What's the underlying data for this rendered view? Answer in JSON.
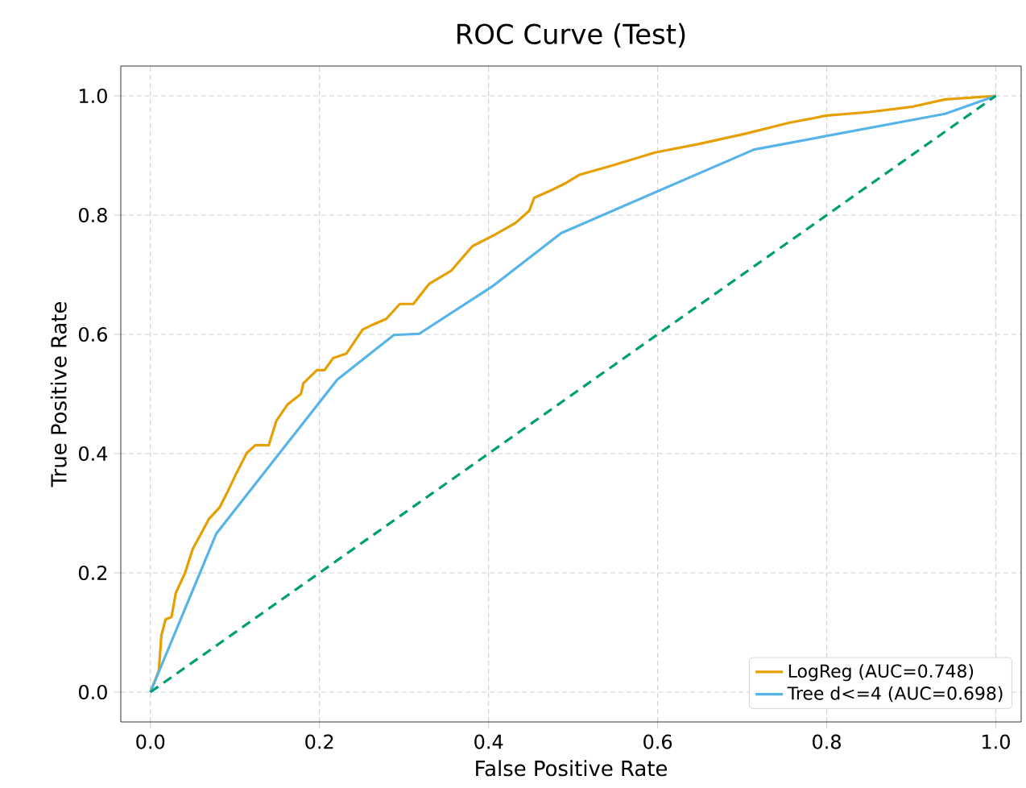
{
  "chart_data": {
    "type": "line",
    "title": "ROC Curve (Test)",
    "xlabel": "False Positive Rate",
    "ylabel": "True Positive Rate",
    "xlim": [
      -0.035,
      1.03
    ],
    "ylim": [
      -0.05,
      1.05
    ],
    "xticks": [
      {
        "value": 0,
        "label": "0.0"
      },
      {
        "value": 0.2,
        "label": "0.2"
      },
      {
        "value": 0.4,
        "label": "0.4"
      },
      {
        "value": 0.6,
        "label": "0.6"
      },
      {
        "value": 0.8,
        "label": "0.8"
      },
      {
        "value": 1,
        "label": "1.0"
      }
    ],
    "yticks": [
      {
        "value": 0,
        "label": "0.0"
      },
      {
        "value": 0.2,
        "label": "0.2"
      },
      {
        "value": 0.4,
        "label": "0.4"
      },
      {
        "value": 0.6,
        "label": "0.6"
      },
      {
        "value": 0.8,
        "label": "0.8"
      },
      {
        "value": 1,
        "label": "1.0"
      }
    ],
    "grid": true,
    "legend": "bottom right",
    "line_style": "solid",
    "marker": "none",
    "series": [
      {
        "name": "LogReg (AUC=0.748)",
        "color": "#e69f00",
        "x": [
          0,
          0.01,
          0.013,
          0.018,
          0.025,
          0.03,
          0.041,
          0.05,
          0.06,
          0.069,
          0.082,
          0.092,
          0.101,
          0.114,
          0.124,
          0.14,
          0.149,
          0.162,
          0.178,
          0.181,
          0.197,
          0.206,
          0.216,
          0.232,
          0.251,
          0.264,
          0.279,
          0.295,
          0.311,
          0.33,
          0.356,
          0.381,
          0.406,
          0.432,
          0.448,
          0.454,
          0.476,
          0.489,
          0.508,
          0.546,
          0.597,
          0.648,
          0.705,
          0.756,
          0.8,
          0.851,
          0.902,
          0.94,
          1
        ],
        "values": [
          0,
          0.036,
          0.095,
          0.122,
          0.126,
          0.166,
          0.2,
          0.24,
          0.266,
          0.29,
          0.31,
          0.338,
          0.365,
          0.401,
          0.414,
          0.414,
          0.455,
          0.482,
          0.5,
          0.518,
          0.54,
          0.54,
          0.56,
          0.568,
          0.608,
          0.617,
          0.626,
          0.651,
          0.651,
          0.685,
          0.707,
          0.748,
          0.766,
          0.787,
          0.807,
          0.829,
          0.843,
          0.852,
          0.868,
          0.883,
          0.905,
          0.919,
          0.937,
          0.955,
          0.967,
          0.973,
          0.982,
          0.994,
          1
        ]
      },
      {
        "name": "Tree d<=4 (AUC=0.698)",
        "color": "#56b4e9",
        "x": [
          0,
          0.078,
          0.221,
          0.288,
          0.318,
          0.406,
          0.486,
          0.714,
          0.94,
          1
        ],
        "values": [
          0,
          0.266,
          0.524,
          0.599,
          0.601,
          0.682,
          0.77,
          0.91,
          0.97,
          1
        ]
      },
      {
        "color": "#009e73",
        "line_style": "dashed",
        "x": [
          0,
          1
        ],
        "values": [
          0,
          1
        ]
      }
    ]
  }
}
